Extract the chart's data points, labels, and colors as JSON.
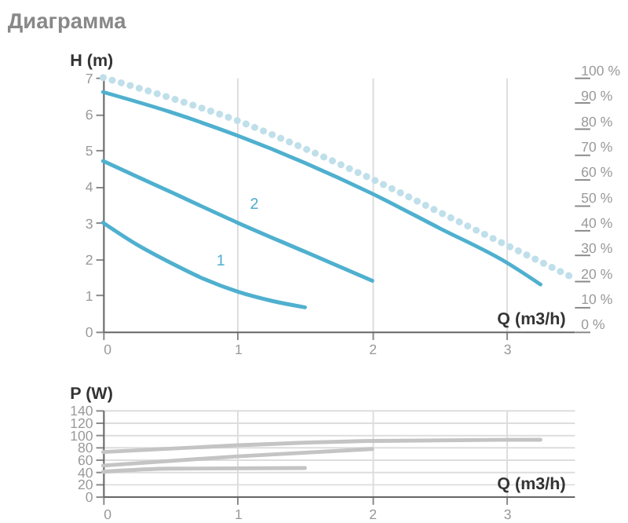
{
  "chart_data": [
    {
      "type": "line",
      "title": "Диаграмма",
      "xlabel": "Q (m3/h)",
      "ylabel": "H (m)",
      "xlim": [
        0,
        3.5
      ],
      "xticks": [
        0,
        1,
        2,
        3
      ],
      "ylim": [
        0,
        7
      ],
      "yticks": [
        0,
        1,
        2,
        3,
        4,
        5,
        6,
        7
      ],
      "y2lim": [
        0,
        100
      ],
      "y2ticks": [
        {
          "value": 0,
          "label": "0 %"
        },
        {
          "value": 10,
          "label": "10 %"
        },
        {
          "value": 20,
          "label": "20 %"
        },
        {
          "value": 30,
          "label": "30 %"
        },
        {
          "value": 40,
          "label": "40 %"
        },
        {
          "value": 50,
          "label": "50 %"
        },
        {
          "value": 60,
          "label": "60 %"
        },
        {
          "value": 70,
          "label": "70 %"
        },
        {
          "value": 80,
          "label": "80 %"
        },
        {
          "value": 90,
          "label": "90 %"
        },
        {
          "value": 100,
          "label": "100 %"
        }
      ],
      "grid": "x",
      "legend": false,
      "line_style": "solid",
      "series": [
        {
          "name": "1",
          "color": "#4fb0cf",
          "x": [
            0,
            0.25,
            0.5,
            0.75,
            1,
            1.25,
            1.5
          ],
          "values": [
            3.0,
            2.4,
            1.9,
            1.45,
            1.1,
            0.85,
            0.67
          ]
        },
        {
          "name": "2",
          "color": "#4fb0cf",
          "x": [
            0,
            0.5,
            1,
            1.5,
            2
          ],
          "values": [
            4.7,
            3.85,
            3.0,
            2.2,
            1.4
          ]
        },
        {
          "color": "#4fb0cf",
          "x": [
            0,
            0.5,
            1,
            1.5,
            2,
            2.5,
            3,
            3.25
          ],
          "values": [
            6.6,
            6.05,
            5.4,
            4.65,
            3.8,
            2.85,
            1.9,
            1.3
          ]
        },
        {
          "color": "#bfdfea",
          "axis": "y2",
          "line_style": "dotted",
          "x": [
            0,
            0.5,
            1,
            1.5,
            2,
            2.5,
            3,
            3.5
          ],
          "values": [
            100,
            92,
            83,
            72,
            60,
            47,
            34,
            21
          ]
        }
      ]
    },
    {
      "type": "line",
      "xlabel": "Q (m3/h)",
      "ylabel": "P (W)",
      "xlim": [
        0,
        3.5
      ],
      "xticks": [
        0,
        1,
        2,
        3
      ],
      "ylim": [
        0,
        140
      ],
      "yticks": [
        0,
        20,
        40,
        60,
        80,
        100,
        120,
        140
      ],
      "grid": true,
      "legend": false,
      "line_style": "solid",
      "series": [
        {
          "color": "#c4c4c4",
          "x": [
            0,
            1,
            2,
            3.25
          ],
          "values": [
            72,
            83,
            90,
            92
          ]
        },
        {
          "color": "#c4c4c4",
          "x": [
            0,
            1,
            2
          ],
          "values": [
            50,
            65,
            77
          ]
        },
        {
          "color": "#c4c4c4",
          "x": [
            0,
            0.5,
            1.5
          ],
          "values": [
            40,
            45,
            46
          ]
        }
      ]
    }
  ]
}
